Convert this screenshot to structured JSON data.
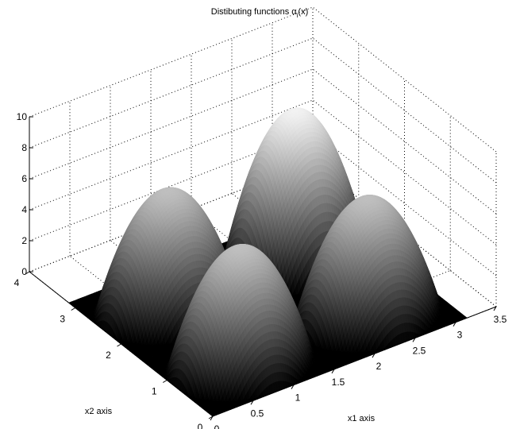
{
  "chart_data": {
    "type": "surface3d",
    "title": "Distibuting functions α",
    "title_sub": "i",
    "title_suffix": "(x)",
    "xlabel": "x1 axis",
    "ylabel": "x2 axis",
    "zlabel": "",
    "xlim": [
      0,
      3.5
    ],
    "ylim": [
      0,
      4
    ],
    "zlim": [
      0,
      10
    ],
    "x_ticks": [
      "0",
      "0.5",
      "1",
      "1.5",
      "2",
      "2.5",
      "3",
      "3.5"
    ],
    "y_ticks": [
      "0",
      "1",
      "2",
      "3",
      "4"
    ],
    "z_ticks": [
      "0",
      "2",
      "4",
      "6",
      "8",
      "10"
    ],
    "grid": true,
    "colormap": "gray",
    "surface": {
      "x_range": [
        0,
        3.14
      ],
      "y_range": [
        0,
        3.14
      ],
      "peaks": [
        {
          "center": [
            0.785,
            0.785
          ],
          "height": 7.5,
          "radius": 0.785
        },
        {
          "center": [
            2.355,
            0.785
          ],
          "height": 7.5,
          "radius": 0.785
        },
        {
          "center": [
            0.785,
            2.355
          ],
          "height": 7.5,
          "radius": 0.785
        },
        {
          "center": [
            2.355,
            2.355
          ],
          "height": 9.5,
          "radius": 0.785
        }
      ]
    }
  }
}
